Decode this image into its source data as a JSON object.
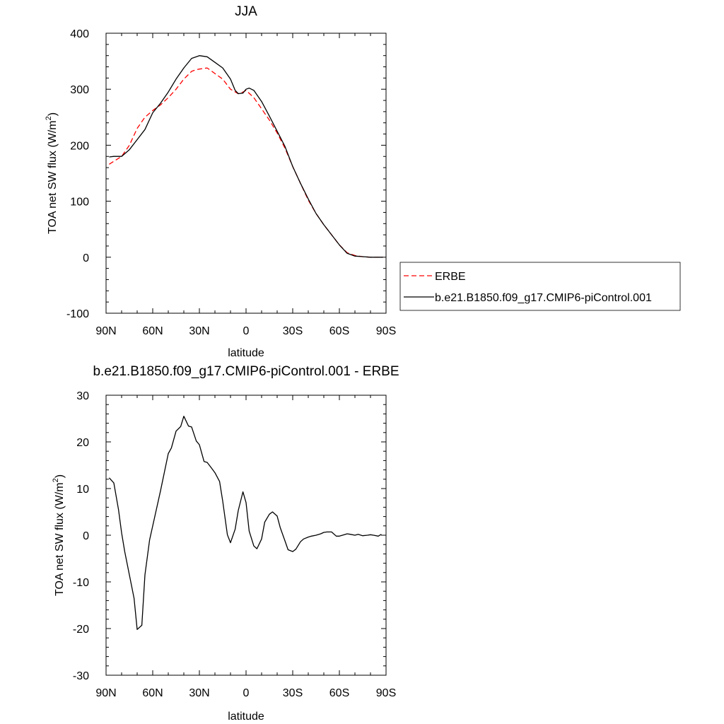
{
  "chart_data": [
    {
      "type": "line",
      "title": "JJA",
      "xlabel": "latitude",
      "ylabel": "TOA net SW flux (W/m",
      "ylabel_sup": "2",
      "ylabel_end": ")",
      "xlim": [
        90,
        -90
      ],
      "ylim": [
        -100,
        400
      ],
      "xticks": [
        {
          "value": 90,
          "label": "90N"
        },
        {
          "value": 60,
          "label": "60N"
        },
        {
          "value": 30,
          "label": "30N"
        },
        {
          "value": 0,
          "label": "0"
        },
        {
          "value": -30,
          "label": "30S"
        },
        {
          "value": -60,
          "label": "60S"
        },
        {
          "value": -90,
          "label": "90S"
        }
      ],
      "yticks": [
        {
          "value": 400,
          "label": "400"
        },
        {
          "value": 300,
          "label": "300"
        },
        {
          "value": 200,
          "label": "200"
        },
        {
          "value": 100,
          "label": "100"
        },
        {
          "value": 0,
          "label": "0"
        },
        {
          "value": -100,
          "label": "-100"
        }
      ],
      "legend_position": "right",
      "series": [
        {
          "name": "ERBE",
          "color": "#ff0000",
          "dash": "dashed",
          "x": [
            88,
            80,
            75,
            70,
            65,
            60,
            55,
            50,
            45,
            40,
            35,
            32,
            30,
            25,
            20,
            15,
            10,
            5,
            2,
            0,
            -5,
            -10,
            -15,
            -20,
            -25,
            -30,
            -35,
            -40,
            -45,
            -50,
            -55,
            -60,
            -65,
            -70,
            -75,
            -80,
            -85,
            -88
          ],
          "y": [
            166,
            180,
            200,
            230,
            250,
            262,
            272,
            285,
            300,
            318,
            332,
            335,
            336,
            338,
            328,
            318,
            300,
            292,
            295,
            298,
            285,
            265,
            245,
            222,
            195,
            162,
            132,
            102,
            78,
            58,
            40,
            22,
            8,
            3,
            1,
            0,
            0,
            0
          ]
        },
        {
          "name": "b.e21.B1850.f09_g17.CMIP6-piControl.001",
          "color": "#000000",
          "dash": "solid",
          "x": [
            88,
            85,
            80,
            75,
            70,
            65,
            60,
            55,
            50,
            45,
            40,
            35,
            30,
            25,
            20,
            15,
            10,
            7,
            5,
            2,
            0,
            -2,
            -5,
            -10,
            -15,
            -20,
            -25,
            -30,
            -35,
            -40,
            -45,
            -50,
            -55,
            -60,
            -65,
            -70,
            -75,
            -80,
            -85,
            -88
          ],
          "y": [
            179,
            180,
            180,
            192,
            210,
            228,
            258,
            275,
            295,
            318,
            338,
            355,
            360,
            358,
            348,
            338,
            318,
            298,
            292,
            293,
            300,
            302,
            298,
            278,
            252,
            225,
            198,
            162,
            132,
            104,
            78,
            58,
            40,
            22,
            7,
            2,
            1,
            0,
            0,
            0
          ]
        }
      ]
    },
    {
      "type": "line",
      "title": "b.e21.B1850.f09_g17.CMIP6-piControl.001 - ERBE",
      "xlabel": "latitude",
      "ylabel": "TOA net SW flux (W/m",
      "ylabel_sup": "2",
      "ylabel_end": ")",
      "xlim": [
        90,
        -90
      ],
      "ylim": [
        -30,
        30
      ],
      "xticks": [
        {
          "value": 90,
          "label": "90N"
        },
        {
          "value": 60,
          "label": "60N"
        },
        {
          "value": 30,
          "label": "30N"
        },
        {
          "value": 0,
          "label": "0"
        },
        {
          "value": -30,
          "label": "30S"
        },
        {
          "value": -60,
          "label": "60S"
        },
        {
          "value": -90,
          "label": "90S"
        }
      ],
      "yticks": [
        {
          "value": 30,
          "label": "30"
        },
        {
          "value": 20,
          "label": "20"
        },
        {
          "value": 10,
          "label": "10"
        },
        {
          "value": 0,
          "label": "0"
        },
        {
          "value": -10,
          "label": "-10"
        },
        {
          "value": -20,
          "label": "-20"
        },
        {
          "value": -30,
          "label": "-30"
        }
      ],
      "series": [
        {
          "name": "",
          "color": "#000000",
          "dash": "solid",
          "x": [
            88,
            85,
            82,
            80,
            78,
            75,
            72,
            70,
            67,
            65,
            62,
            58,
            55,
            50,
            48,
            45,
            42,
            40,
            37,
            35,
            32,
            30,
            27,
            25,
            22,
            20,
            17,
            15,
            12,
            10,
            7,
            5,
            2,
            0,
            -2,
            -5,
            -7,
            -10,
            -12,
            -15,
            -17,
            -20,
            -22,
            -25,
            -27,
            -30,
            -32,
            -35,
            -37,
            -40,
            -42,
            -45,
            -48,
            -50,
            -52,
            -55,
            -58,
            -60,
            -62,
            -65,
            -67,
            -70,
            -72,
            -75,
            -78,
            -80,
            -82,
            -85,
            -87
          ],
          "y": [
            12.3,
            11.2,
            5.5,
            0.5,
            -3.5,
            -8.5,
            -13.5,
            -20.2,
            -19.3,
            -8.5,
            -1.0,
            5.0,
            9.5,
            17.5,
            18.7,
            22.3,
            23.3,
            25.5,
            23.4,
            23.2,
            20.2,
            19.4,
            15.8,
            15.6,
            14.3,
            13.4,
            11.5,
            7.3,
            0.1,
            -1.6,
            1.3,
            5.3,
            9.3,
            7.0,
            0.9,
            -2.3,
            -2.9,
            -0.8,
            2.8,
            4.5,
            5.0,
            4.1,
            1.6,
            -1.2,
            -3.1,
            -3.5,
            -3.0,
            -1.4,
            -0.8,
            -0.4,
            -0.2,
            0.0,
            0.3,
            0.6,
            0.7,
            0.7,
            -0.2,
            -0.2,
            0.0,
            0.3,
            0.2,
            0.0,
            0.2,
            -0.1,
            0.0,
            0.1,
            0.0,
            -0.2,
            0.2
          ]
        }
      ]
    }
  ]
}
